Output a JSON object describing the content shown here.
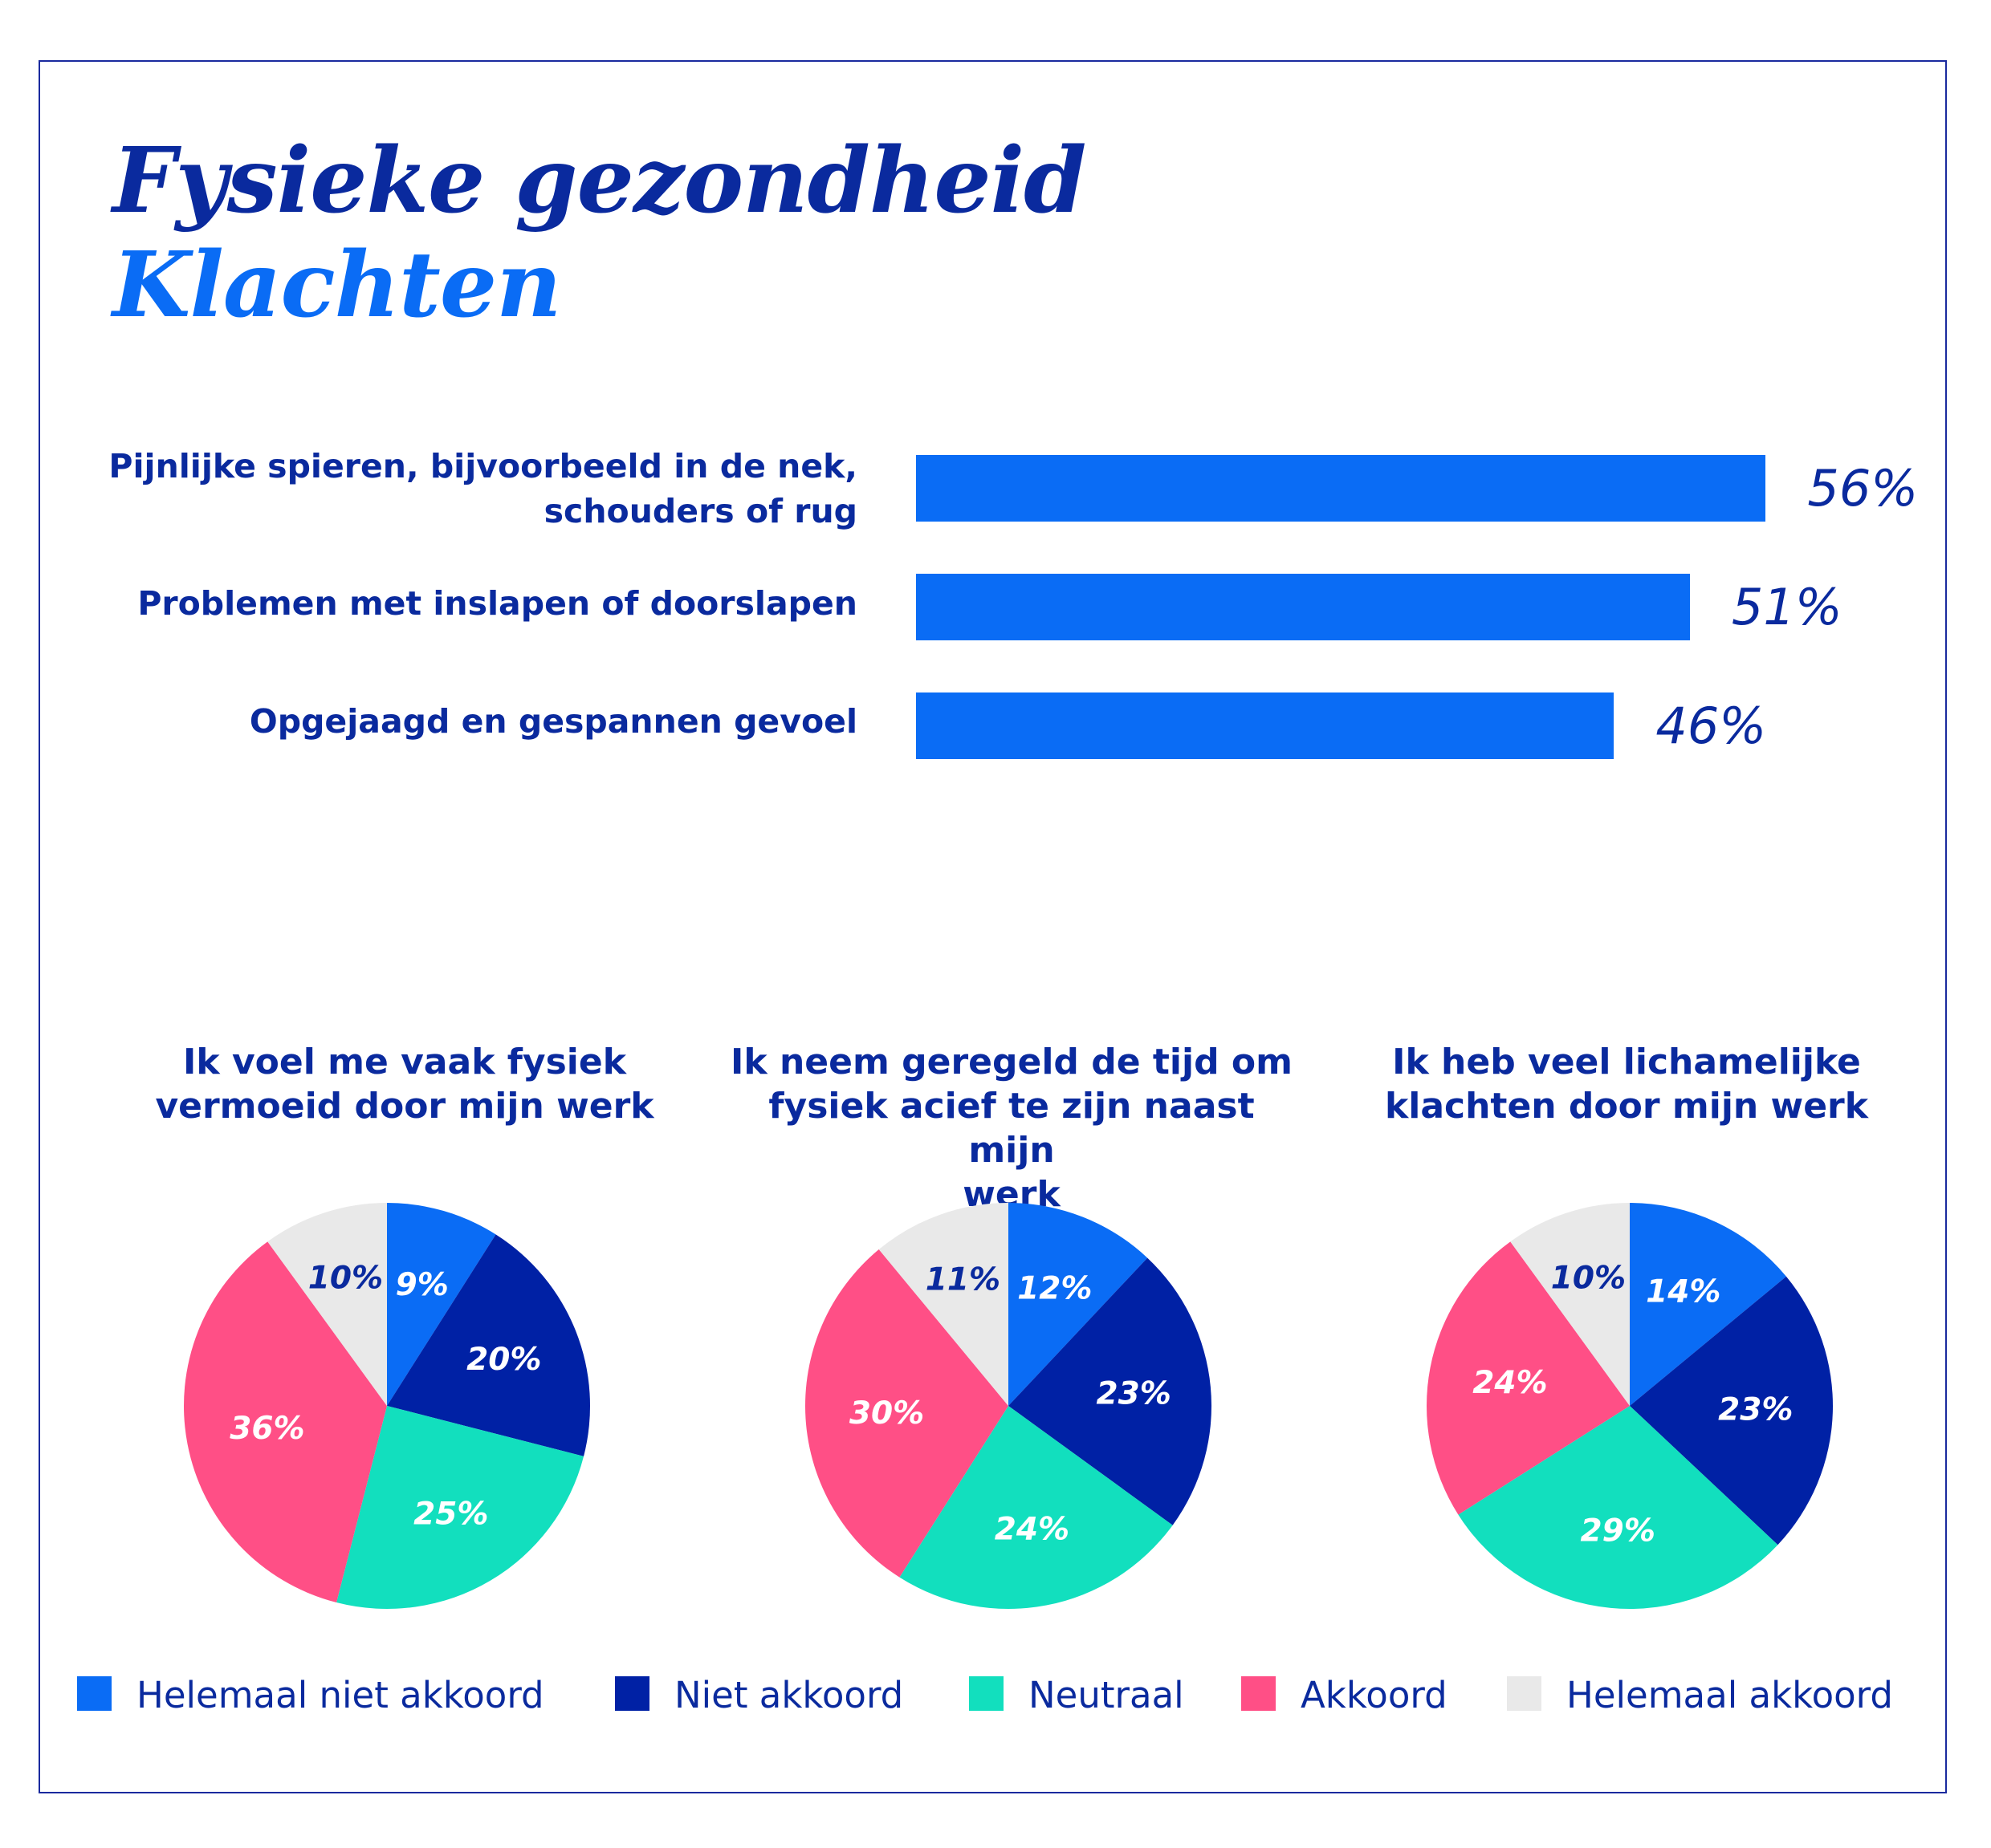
{
  "header": {
    "title": "Fysieke gezondheid",
    "subtitle": "Klachten"
  },
  "colors": {
    "helemaal_niet_akkoord": "#0a6cf5",
    "niet_akkoord": "#0021a5",
    "neutraal": "#12dfbe",
    "akkoord": "#ff4f86",
    "helemaal_akkoord": "#e9e9e9",
    "text_dark": "#0a2a9e"
  },
  "chart_data": [
    {
      "type": "bar",
      "orientation": "horizontal",
      "categories": [
        "Pijnlijke spieren, bijvoorbeeld in de nek, schouders of rug",
        "Problemen met inslapen of doorslapen",
        "Opgejaagd en gespannen gevoel"
      ],
      "category_lines": [
        [
          "Pijnlijke spieren, bijvoorbeeld in de nek,",
          "schouders of rug"
        ],
        [
          "Problemen met inslapen of doorslapen"
        ],
        [
          "Opgejaagd en gespannen gevoel"
        ]
      ],
      "values": [
        56,
        51,
        46
      ],
      "value_labels": [
        "56%",
        "51%",
        "46%"
      ],
      "unit": "%",
      "grid": false
    },
    {
      "type": "pie",
      "title": "Ik voel me vaak fysiek vermoeid door mijn werk",
      "title_lines": [
        "Ik voel me vaak fysiek",
        "vermoeid door mijn werk"
      ],
      "labels": [
        "Helemaal niet akkoord",
        "Niet akkoord",
        "Neutraal",
        "Akkoord",
        "Helemaal akkoord"
      ],
      "values": [
        9,
        20,
        25,
        36,
        10
      ],
      "value_labels": [
        "9%",
        "20%",
        "25%",
        "36%",
        "10%"
      ]
    },
    {
      "type": "pie",
      "title": "Ik neem geregeld de tijd om fysiek acief te zijn naast mijn werk",
      "title_lines": [
        "Ik neem geregeld de tijd om",
        "fysiek acief te zijn naast mijn",
        "werk"
      ],
      "labels": [
        "Helemaal niet akkoord",
        "Niet akkoord",
        "Neutraal",
        "Akkoord",
        "Helemaal akkoord"
      ],
      "values": [
        12,
        23,
        24,
        30,
        11
      ],
      "value_labels": [
        "12%",
        "23%",
        "24%",
        "30%",
        "11%"
      ]
    },
    {
      "type": "pie",
      "title": "Ik heb veel lichamelijke klachten door mijn werk",
      "title_lines": [
        "Ik heb veel lichamelijke",
        "klachten door mijn werk"
      ],
      "labels": [
        "Helemaal niet akkoord",
        "Niet akkoord",
        "Neutraal",
        "Akkoord",
        "Helemaal akkoord"
      ],
      "values": [
        14,
        23,
        29,
        24,
        10
      ],
      "value_labels": [
        "14%",
        "23%",
        "29%",
        "24%",
        "10%"
      ]
    }
  ],
  "legend": {
    "placement": "bottom",
    "items": [
      {
        "label": "Helemaal niet akkoord",
        "color": "#0a6cf5"
      },
      {
        "label": "Niet akkoord",
        "color": "#0021a5"
      },
      {
        "label": "Neutraal",
        "color": "#12dfbe"
      },
      {
        "label": "Akkoord",
        "color": "#ff4f86"
      },
      {
        "label": "Helemaal akkoord",
        "color": "#e9e9e9"
      }
    ]
  }
}
